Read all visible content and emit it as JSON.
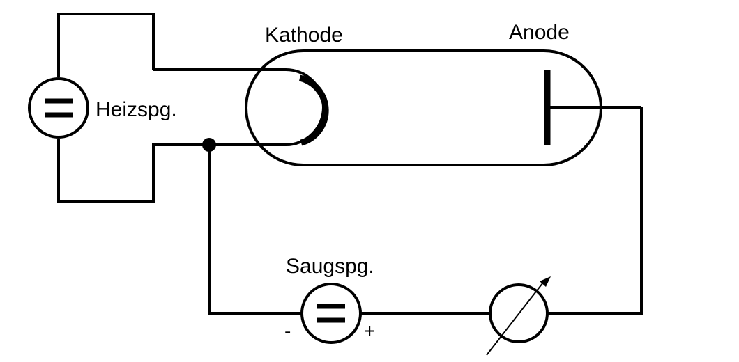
{
  "labels": {
    "cathode": "Kathode",
    "anode": "Anode",
    "heater_voltage": "Heizspg.",
    "suction_voltage": "Saugspg.",
    "minus": "-",
    "plus": "+"
  },
  "colors": {
    "line": "#000000",
    "background": "#ffffff"
  },
  "icons": {
    "heater_source": "dc-voltage-source-icon",
    "suction_source": "dc-voltage-source-icon",
    "meter": "adjustable-ammeter-icon"
  }
}
